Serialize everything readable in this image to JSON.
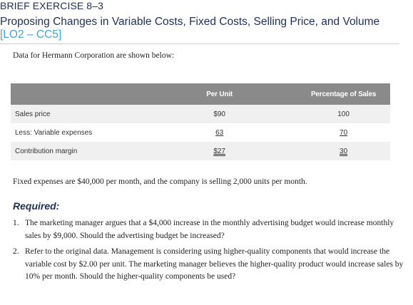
{
  "exercise_label": "BRIEF EXERCISE 8–3",
  "title": "Proposing Changes in Variable Costs, Fixed Costs, Selling Price, and Volume",
  "learning_objectives": "[LO2 – CC5]",
  "intro": "Data for Hermann Corporation are shown below:",
  "table": {
    "headers": [
      "",
      "Per Unit",
      "Percentage of Sales"
    ],
    "rows": [
      {
        "label": "Sales price",
        "per_unit": "$90",
        "percent": "100"
      },
      {
        "label": "Less: Variable expenses",
        "per_unit": "63",
        "percent": "70"
      },
      {
        "label": "Contribution margin",
        "per_unit": "$27",
        "percent": "30"
      }
    ]
  },
  "fixed_note": "Fixed expenses are $40,000 per month, and the company is selling 2,000 units per month.",
  "required_heading": "Required:",
  "requirements": [
    {
      "num": "1.",
      "text": "The marketing manager argues that a $4,000 increase in the monthly advertising budget would increase monthly sales by $9,000. Should the advertising budget be increased?"
    },
    {
      "num": "2.",
      "text": "Refer to the original data. Management is considering using higher-quality components that would increase the variable cost by $2.00 per unit. The marketing manager believes the higher-quality product would increase sales by 10% per month. Should the higher-quality components be used?"
    }
  ]
}
